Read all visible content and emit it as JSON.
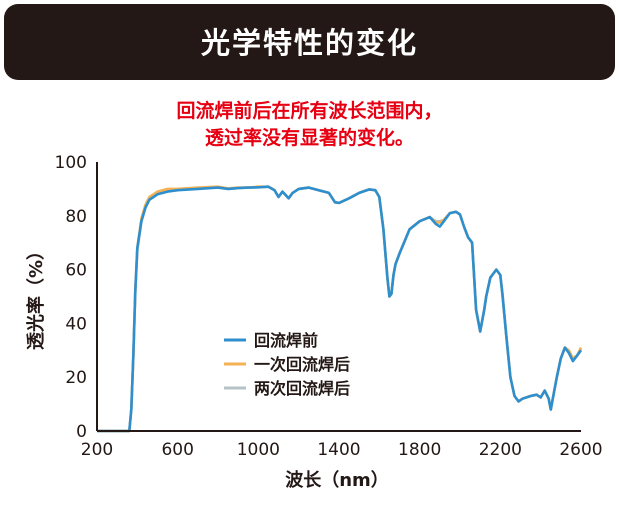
{
  "header": {
    "title": "光学特性的变化"
  },
  "notes": {
    "line1": "回流焊前后在所有波长范围内，",
    "line2": "透过率没有显著的变化。"
  },
  "colors": {
    "header_bg": "#231815",
    "note_text": "#e60012",
    "series": [
      "#2e8fcf",
      "#f4b254",
      "#b6c3c6"
    ]
  },
  "chart_data": {
    "type": "line",
    "xlabel": "波长（nm）",
    "ylabel": "透光率（%）",
    "xlim": [
      200,
      2600
    ],
    "ylim": [
      0,
      100
    ],
    "x_ticks": [
      "200",
      "600",
      "1000",
      "1400",
      "1800",
      "2200",
      "2600"
    ],
    "y_ticks": [
      "0",
      "20",
      "40",
      "60",
      "80",
      "100"
    ],
    "grid": false,
    "legend_position": "lower-center",
    "x": [
      200,
      330,
      360,
      370,
      380,
      390,
      400,
      420,
      440,
      460,
      480,
      500,
      550,
      600,
      700,
      800,
      850,
      900,
      950,
      1000,
      1050,
      1080,
      1100,
      1120,
      1150,
      1170,
      1200,
      1250,
      1300,
      1350,
      1380,
      1400,
      1450,
      1500,
      1550,
      1580,
      1600,
      1620,
      1640,
      1650,
      1660,
      1670,
      1680,
      1700,
      1750,
      1800,
      1850,
      1880,
      1900,
      1920,
      1950,
      1980,
      2000,
      2020,
      2040,
      2060,
      2080,
      2100,
      2120,
      2130,
      2150,
      2180,
      2200,
      2210,
      2230,
      2250,
      2270,
      2290,
      2310,
      2330,
      2350,
      2380,
      2400,
      2420,
      2440,
      2450,
      2460,
      2480,
      2500,
      2520,
      2540,
      2560,
      2580,
      2600
    ],
    "series": [
      {
        "name": "回流焊前",
        "values": [
          0,
          0,
          0,
          8,
          28,
          52,
          68,
          78,
          83,
          86,
          87,
          88,
          89,
          89.5,
          90,
          90.5,
          90,
          90.3,
          90.5,
          90.6,
          90.8,
          89.5,
          87,
          89,
          86.5,
          88.5,
          90,
          90.5,
          89.5,
          88.5,
          85,
          84.8,
          86.5,
          88.5,
          89.8,
          89.5,
          87,
          75,
          57,
          50,
          51,
          58,
          62,
          66,
          75,
          78,
          79.5,
          77,
          76,
          78,
          81,
          81.5,
          80.5,
          76,
          72,
          70,
          45,
          37,
          45,
          50,
          57,
          60,
          58,
          51,
          35,
          20,
          13,
          11,
          12,
          12.5,
          13,
          13.5,
          12.5,
          15,
          12,
          8,
          12,
          20,
          27,
          31,
          29,
          26,
          28,
          30
        ]
      },
      {
        "name": "一次回流焊后",
        "values": [
          0,
          0,
          0,
          8,
          27,
          52,
          68,
          79,
          84,
          87,
          88,
          89,
          90,
          90,
          90.5,
          90.8,
          90.2,
          90.5,
          90.5,
          90.8,
          90.8,
          89.6,
          87,
          89,
          86.5,
          88.5,
          90,
          90.5,
          89.5,
          88.5,
          85,
          84.8,
          86.5,
          88.5,
          89.8,
          89.5,
          87,
          75,
          57,
          50,
          51,
          58,
          62,
          66,
          75,
          78,
          79.5,
          77.5,
          77.5,
          78.5,
          81,
          81.5,
          80.5,
          76,
          72,
          70,
          45,
          37,
          45,
          50,
          57,
          60,
          58,
          51,
          35,
          20,
          13,
          11,
          12,
          12.5,
          13,
          13.5,
          12.5,
          15,
          12,
          8,
          12,
          20,
          27,
          31,
          30,
          27,
          28,
          31
        ]
      },
      {
        "name": "两次回流焊后",
        "values": [
          0,
          0,
          0,
          8,
          27,
          52,
          67,
          78,
          83,
          86,
          87,
          88.5,
          89.5,
          90,
          90.3,
          90.6,
          90,
          90.3,
          90.5,
          90.6,
          90.8,
          89.5,
          87,
          89,
          86.5,
          88.5,
          90,
          90.5,
          89.5,
          88.5,
          85,
          84.8,
          86.5,
          88.5,
          89.8,
          89.5,
          87,
          75,
          57,
          50,
          51,
          58,
          62,
          66,
          75,
          78,
          79.5,
          78,
          78,
          78.5,
          81,
          81.5,
          80.5,
          76,
          72,
          70,
          45,
          37,
          45,
          50,
          57,
          60,
          58,
          51,
          35,
          20,
          13,
          11,
          12,
          12.5,
          13,
          13.5,
          12.5,
          15,
          12,
          8,
          12,
          20,
          27,
          31,
          29.5,
          27,
          28,
          30.5
        ]
      }
    ]
  }
}
